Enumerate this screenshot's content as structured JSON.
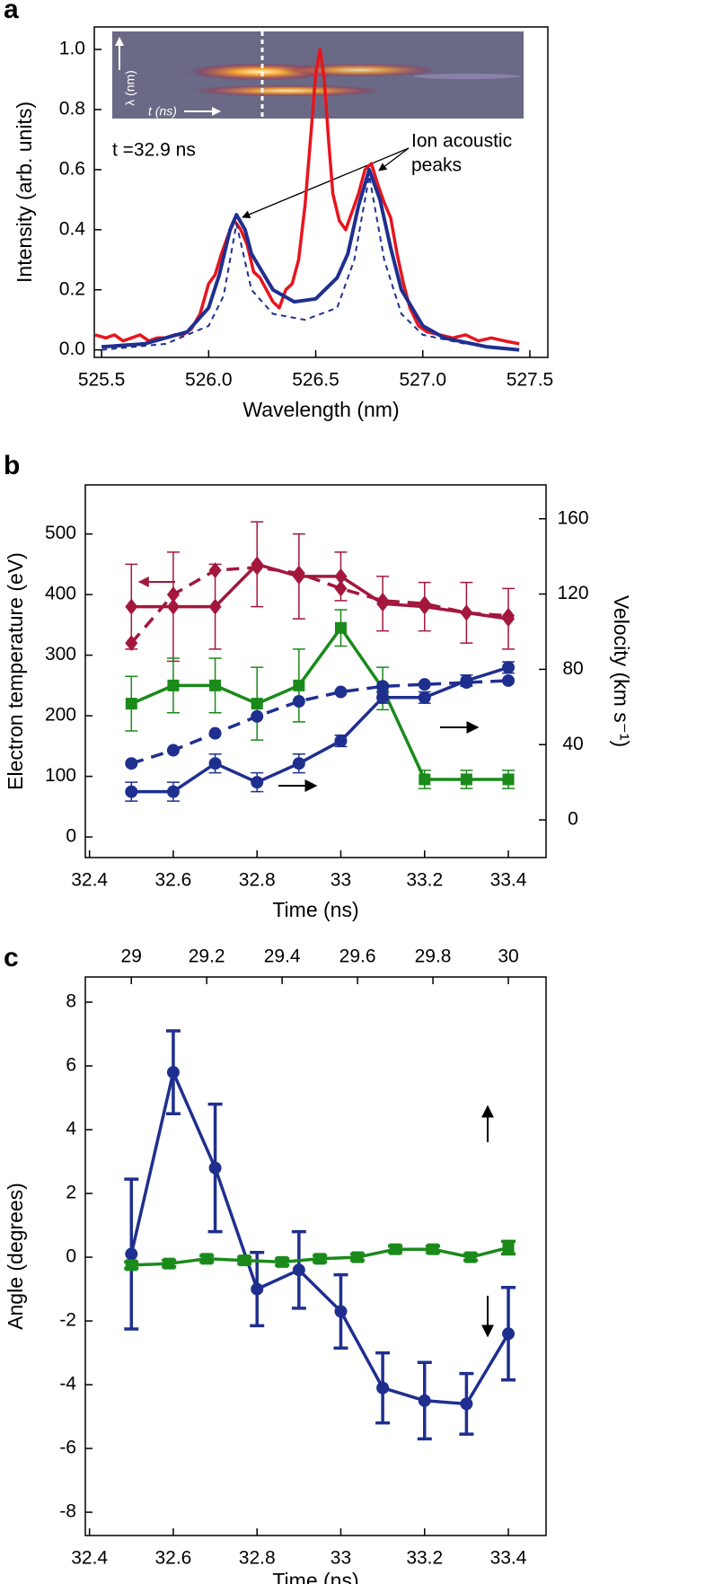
{
  "chart_data": [
    {
      "type": "line",
      "panel_label": "a",
      "xlabel": "Wavelength (nm)",
      "ylabel": "Intensity (arb. units)",
      "xlim": [
        525.466,
        527.584
      ],
      "ylim": [
        -0.025,
        1.075
      ],
      "xticks": [
        525.5,
        {
          "value": 526,
          "label": "526.0"
        },
        526.5,
        {
          "value": 527,
          "label": "527.0"
        },
        527.5
      ],
      "yticks": [
        {
          "value": 0,
          "label": "0.0"
        },
        0.2,
        0.4,
        0.6,
        0.8,
        {
          "value": 1,
          "label": "1.0"
        }
      ],
      "annotations": [
        "t =32.9 ns",
        "Ion acoustic",
        "peaks",
        "λ (nm)",
        "t (ns)"
      ],
      "series": [
        {
          "color": "#e8141e",
          "linewidth": 3.5,
          "x": [
            525.47,
            525.52,
            525.56,
            525.6,
            525.64,
            525.68,
            525.72,
            525.76,
            525.8,
            525.84,
            525.88,
            525.92,
            525.96,
            526.0,
            526.03,
            526.06,
            526.09,
            526.12,
            526.15,
            526.18,
            526.21,
            526.24,
            526.27,
            526.3,
            526.33,
            526.36,
            526.39,
            526.42,
            526.45,
            526.48,
            526.5,
            526.52,
            526.54,
            526.56,
            526.58,
            526.61,
            526.64,
            526.67,
            526.7,
            526.73,
            526.76,
            526.79,
            526.82,
            526.85,
            526.88,
            526.91,
            526.94,
            526.98,
            527.02,
            527.08,
            527.14,
            527.2,
            527.26,
            527.32,
            527.38,
            527.45
          ],
          "values": [
            0.05,
            0.04,
            0.05,
            0.03,
            0.04,
            0.05,
            0.03,
            0.04,
            0.04,
            0.05,
            0.05,
            0.07,
            0.12,
            0.22,
            0.25,
            0.32,
            0.38,
            0.43,
            0.4,
            0.35,
            0.26,
            0.24,
            0.2,
            0.16,
            0.14,
            0.2,
            0.22,
            0.3,
            0.48,
            0.74,
            0.92,
            1.0,
            0.9,
            0.7,
            0.52,
            0.43,
            0.4,
            0.46,
            0.52,
            0.6,
            0.62,
            0.55,
            0.49,
            0.44,
            0.32,
            0.22,
            0.14,
            0.08,
            0.06,
            0.05,
            0.04,
            0.05,
            0.03,
            0.04,
            0.03,
            0.02
          ]
        },
        {
          "color": "#1f2f8f",
          "linewidth": 4,
          "x": [
            525.5,
            525.7,
            525.9,
            526.0,
            526.05,
            526.1,
            526.13,
            526.17,
            526.2,
            526.3,
            526.4,
            526.5,
            526.6,
            526.65,
            526.7,
            526.75,
            526.8,
            526.85,
            526.9,
            527.0,
            527.1,
            527.3,
            527.45
          ],
          "values": [
            0.01,
            0.02,
            0.06,
            0.14,
            0.25,
            0.4,
            0.45,
            0.4,
            0.32,
            0.2,
            0.16,
            0.17,
            0.24,
            0.32,
            0.48,
            0.6,
            0.5,
            0.34,
            0.2,
            0.08,
            0.04,
            0.01,
            0.0
          ]
        },
        {
          "color": "#1f2f8f",
          "linewidth": 2,
          "dash": true,
          "x": [
            525.5,
            525.8,
            526.0,
            526.07,
            526.13,
            526.2,
            526.3,
            526.45,
            526.6,
            526.68,
            526.75,
            526.82,
            526.9,
            527.0,
            527.2,
            527.45
          ],
          "values": [
            0.0,
            0.02,
            0.08,
            0.18,
            0.42,
            0.2,
            0.12,
            0.1,
            0.14,
            0.3,
            0.58,
            0.3,
            0.12,
            0.05,
            0.02,
            0.0
          ]
        }
      ]
    },
    {
      "type": "line",
      "panel_label": "b",
      "xlabel": "Time (ns)",
      "ylabel": "Electron temperature (eV)",
      "y2label": "Velocity (km s⁻¹)",
      "xlim": [
        32.39,
        33.49
      ],
      "ylim": [
        -34,
        581
      ],
      "y2lim": [
        -20,
        178
      ],
      "xticks": [
        32.4,
        32.6,
        32.8,
        33,
        33.2,
        33.4
      ],
      "yticks": [
        0,
        100,
        200,
        300,
        400,
        500
      ],
      "y2ticks": [
        0,
        40,
        80,
        120,
        160
      ],
      "series": [
        {
          "color": "#a3173d",
          "marker": "diamond",
          "linewidth": 3.5,
          "x": [
            32.5,
            32.6,
            32.7,
            32.8,
            32.9,
            33.0,
            33.1,
            33.2,
            33.3,
            33.4
          ],
          "values": [
            380,
            380,
            380,
            450,
            430,
            430,
            385,
            380,
            370,
            360
          ],
          "error": [
            70,
            90,
            70,
            70,
            70,
            40,
            45,
            40,
            50,
            50
          ]
        },
        {
          "color": "#a3173d",
          "marker": "diamond",
          "linewidth": 3.5,
          "dash": true,
          "x": [
            32.5,
            32.6,
            32.7,
            32.8,
            32.9,
            33.0,
            33.1,
            33.2,
            33.3,
            33.4
          ],
          "values": [
            320,
            400,
            440,
            445,
            435,
            410,
            390,
            385,
            370,
            365
          ]
        },
        {
          "color": "#1a8a1a",
          "marker": "square",
          "linewidth": 3.5,
          "x": [
            32.5,
            32.6,
            32.7,
            32.8,
            32.9,
            33.0,
            33.1,
            33.2,
            33.3,
            33.4
          ],
          "values": [
            220,
            250,
            250,
            220,
            250,
            345,
            245,
            95,
            95,
            95
          ],
          "error": [
            45,
            45,
            45,
            60,
            60,
            30,
            35,
            15,
            15,
            15
          ]
        },
        {
          "color": "#1f2f8f",
          "marker": "circle",
          "linewidth": 3.5,
          "axis": "y2",
          "x": [
            32.5,
            32.6,
            32.7,
            32.8,
            32.9,
            33.0,
            33.1,
            33.2,
            33.3,
            33.4
          ],
          "values": [
            15,
            15,
            30,
            20,
            30,
            42,
            65,
            65,
            74,
            81
          ],
          "error": [
            5,
            5,
            5,
            5,
            5,
            3,
            3,
            3,
            3,
            3
          ]
        },
        {
          "color": "#1f2f8f",
          "marker": "circle",
          "linewidth": 3.5,
          "axis": "y2",
          "dash": true,
          "x": [
            32.5,
            32.6,
            32.7,
            32.8,
            32.9,
            33.0,
            33.1,
            33.2,
            33.3,
            33.4
          ],
          "values": [
            30,
            37,
            46,
            55,
            63,
            68,
            71,
            72,
            73,
            74
          ]
        }
      ]
    },
    {
      "type": "line",
      "panel_label": "c",
      "xlabel": "Time (ns)",
      "ylabel": "Angle (degrees)",
      "xlim": [
        32.39,
        33.49
      ],
      "x2lim": [
        28.878,
        30.1
      ],
      "ylim": [
        -8.73,
        8.79
      ],
      "xticks": [
        32.4,
        32.6,
        32.8,
        33,
        33.2,
        33.4
      ],
      "x2ticks": [
        29,
        29.2,
        29.4,
        29.6,
        29.8,
        30
      ],
      "yticks": [
        -8,
        -6,
        -4,
        -2,
        0,
        2,
        4,
        6,
        8
      ],
      "series": [
        {
          "color": "#1f2f8f",
          "marker": "circle",
          "linewidth": 3.5,
          "thickerr": true,
          "x": [
            32.5,
            32.6,
            32.7,
            32.8,
            32.9,
            33.0,
            33.1,
            33.2,
            33.3,
            33.4
          ],
          "values": [
            0.1,
            5.8,
            2.8,
            -1,
            -0.4,
            -1.7,
            -4.1,
            -4.5,
            -4.6,
            -2.4
          ],
          "error": [
            2.35,
            1.3,
            2.0,
            1.15,
            1.2,
            1.15,
            1.1,
            1.2,
            0.95,
            1.45
          ]
        },
        {
          "color": "#1a8a1a",
          "marker": "square",
          "linewidth": 3.5,
          "xaxis": "x2",
          "thickerr": true,
          "x": [
            29.0,
            29.1,
            29.2,
            29.3,
            29.4,
            29.5,
            29.6,
            29.7,
            29.8,
            29.9,
            30.0
          ],
          "values": [
            -0.25,
            -0.2,
            -0.05,
            -0.1,
            -0.15,
            -0.05,
            0,
            0.25,
            0.25,
            0,
            0.3
          ],
          "error": [
            0.1,
            0.1,
            0.1,
            0.1,
            0.1,
            0.1,
            0.1,
            0.1,
            0.1,
            0.1,
            0.2
          ]
        }
      ]
    }
  ]
}
